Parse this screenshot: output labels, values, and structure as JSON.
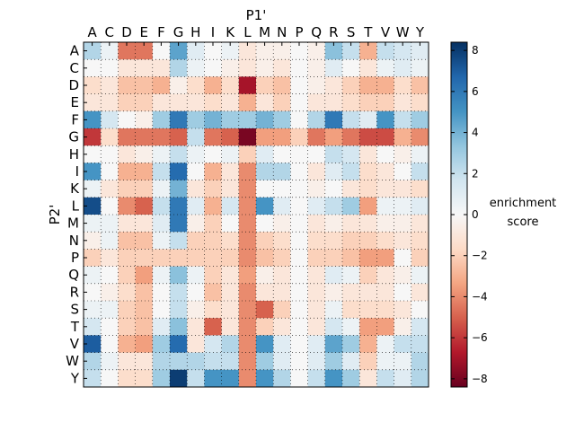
{
  "chart_data": {
    "type": "heatmap",
    "xlabel": "P1'",
    "ylabel": "P2'",
    "colorbar_label_line1": "enrichment",
    "colorbar_label_line2": "score",
    "colorbar_range": [
      -8.4,
      8.4
    ],
    "colorbar_ticks": [
      "8",
      "6",
      "4",
      "2",
      "0",
      "−2",
      "−4",
      "−6",
      "−8"
    ],
    "colormap": "RdBu (red = negative, blue = positive)",
    "grid": "dotted",
    "x_categories": [
      "A",
      "C",
      "D",
      "E",
      "F",
      "G",
      "H",
      "I",
      "K",
      "L",
      "M",
      "N",
      "P",
      "Q",
      "R",
      "S",
      "T",
      "V",
      "W",
      "Y"
    ],
    "y_categories": [
      "A",
      "C",
      "D",
      "E",
      "F",
      "G",
      "H",
      "I",
      "K",
      "L",
      "M",
      "N",
      "P",
      "Q",
      "R",
      "S",
      "T",
      "V",
      "W",
      "Y"
    ],
    "values": [
      [
        2.5,
        0.5,
        -4.5,
        -4.5,
        0,
        4.5,
        1,
        0,
        0.5,
        -1,
        -0.5,
        -0.5,
        0,
        -0.5,
        3.5,
        2,
        -3,
        2,
        1.5,
        1
      ],
      [
        0,
        0,
        -1,
        -1,
        -1,
        2.5,
        0.5,
        0,
        -0.5,
        -1,
        -0.5,
        -1,
        0,
        -0.5,
        1,
        0,
        -1,
        0.5,
        1,
        0.5
      ],
      [
        -1.5,
        -1,
        -2.5,
        -2.5,
        -3,
        -0.5,
        -1.5,
        -3,
        -1.5,
        -7,
        -2,
        -2.5,
        0,
        -0.5,
        -1,
        -2,
        -3,
        -3,
        -1.5,
        -2.5
      ],
      [
        -1,
        -1,
        -2,
        -2,
        -1,
        -1,
        -1,
        -1.5,
        -1,
        -3,
        -1,
        -2,
        0,
        -1,
        -1,
        -1.5,
        -2,
        -2,
        -1,
        -1.5
      ],
      [
        5,
        1.5,
        0,
        -0.5,
        3,
        6,
        3,
        4,
        3,
        3,
        4,
        3,
        0,
        2.5,
        6,
        2,
        1,
        5,
        2,
        3
      ],
      [
        -6,
        -1.5,
        -4.5,
        -4.5,
        -4.5,
        -5,
        2,
        -4.5,
        -5,
        -8,
        -3.5,
        -3.5,
        -2,
        -4.5,
        -3.5,
        -4.5,
        -5.5,
        -5.5,
        -3,
        -4
      ],
      [
        0,
        0,
        -1,
        -0.5,
        0.5,
        2,
        0.5,
        0,
        0.5,
        -2,
        1,
        0,
        0,
        0,
        2,
        1.5,
        -1,
        0,
        -0.5,
        0.5
      ],
      [
        5,
        0,
        -3,
        -3,
        2,
        6.5,
        0,
        -3,
        -1,
        -4,
        2.5,
        2.5,
        0,
        -1,
        1,
        2,
        -1.5,
        -1,
        0,
        2
      ],
      [
        0.5,
        -1,
        -2,
        -2,
        0.5,
        4,
        -1,
        -2,
        -1,
        -4,
        0,
        0,
        0,
        -0.5,
        0,
        -1,
        -1.5,
        -1,
        -1,
        -1.5
      ],
      [
        7.5,
        0,
        -4,
        -5,
        2,
        6,
        1,
        -3,
        1.5,
        -4,
        5,
        1,
        0,
        1,
        2,
        3,
        -3.5,
        0.5,
        0.5,
        1
      ],
      [
        0.5,
        0.5,
        -1,
        -1,
        1,
        6,
        -0.5,
        -2,
        0,
        -4,
        0,
        -0.5,
        0,
        -1,
        -0.5,
        -1,
        -1,
        -0.5,
        -0.5,
        -1
      ],
      [
        -0.5,
        0.5,
        -2.5,
        -2.5,
        0.5,
        2,
        -2,
        -2,
        -1.5,
        -4,
        -2,
        -1.5,
        0,
        -1.5,
        -1.5,
        -2,
        -2,
        -1.5,
        -1,
        -1.5
      ],
      [
        -2,
        -1,
        -2,
        -2,
        -2,
        -2,
        -2,
        -2,
        -2,
        -4,
        -2.5,
        -2,
        0,
        -2,
        -2,
        -2.5,
        -3.5,
        -3.5,
        0,
        -2
      ],
      [
        0.5,
        0,
        -2,
        -3.5,
        0.5,
        3.5,
        0.5,
        -2,
        -1,
        -3.5,
        -0.5,
        -1,
        0,
        -1,
        1,
        0.5,
        -2,
        -1,
        -0.5,
        0.5
      ],
      [
        0,
        -0.5,
        -1.5,
        -2.5,
        0,
        2,
        0,
        -2.5,
        -1,
        -4,
        -1,
        -1,
        0,
        -1,
        -0.5,
        -1,
        -1,
        -1,
        0,
        -1
      ],
      [
        0.5,
        0.5,
        -2,
        -2.5,
        0,
        2,
        -0.5,
        -1.5,
        -1,
        -4,
        -5,
        -2,
        0,
        -1,
        0.5,
        -1.5,
        -1.5,
        -1.5,
        -1,
        0
      ],
      [
        1.5,
        0,
        -2,
        -2.5,
        1,
        3.5,
        -1,
        -5,
        -1,
        -4,
        -2,
        -1,
        0,
        -1,
        1.5,
        0.5,
        -3.5,
        -3.5,
        -0.5,
        1.5
      ],
      [
        7,
        0,
        -3,
        -3.5,
        3,
        6.5,
        -1,
        1.5,
        2.5,
        -4,
        5,
        1,
        0,
        1,
        4.5,
        3,
        -3,
        0.5,
        2,
        2
      ],
      [
        2.5,
        0.5,
        -1,
        -1,
        2.5,
        2.5,
        2.5,
        2,
        2,
        -4,
        3,
        1,
        0,
        1,
        3,
        1,
        -2,
        0.5,
        0.5,
        2.5
      ],
      [
        2,
        0,
        -1.5,
        -1.5,
        3,
        8,
        2,
        5,
        5,
        -4,
        5,
        2.5,
        0,
        2,
        5,
        3,
        -1,
        2,
        1,
        2.5
      ]
    ]
  }
}
